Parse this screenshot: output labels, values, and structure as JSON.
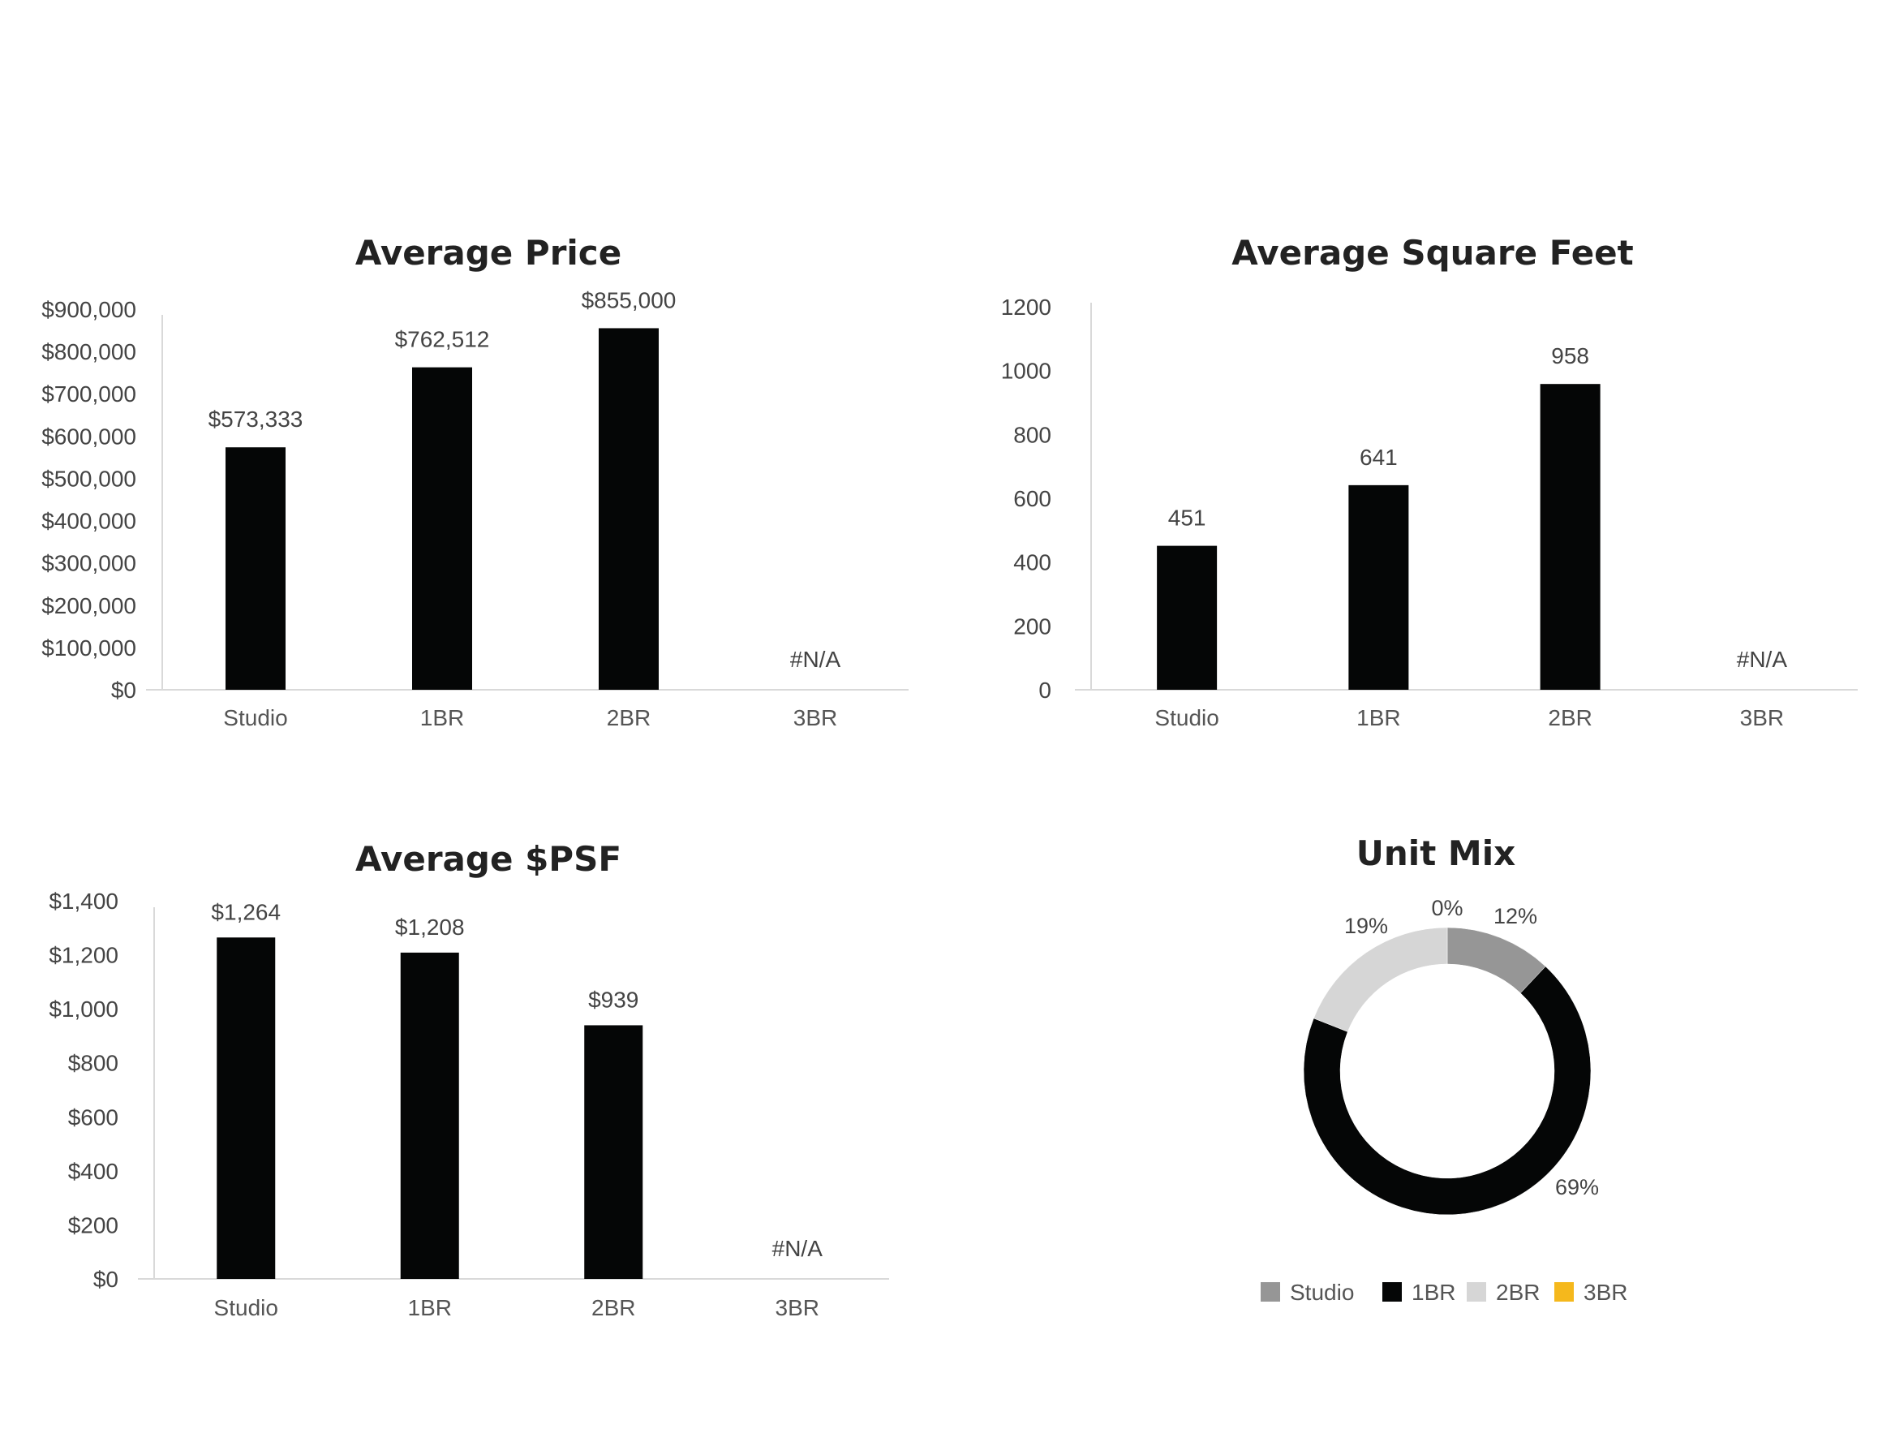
{
  "chart_data": [
    {
      "type": "bar",
      "title": "Average Price",
      "categories": [
        "Studio",
        "1BR",
        "2BR",
        "3BR"
      ],
      "values": [
        573333,
        762512,
        855000,
        null
      ],
      "data_labels": [
        "$573,333",
        "$762,512",
        "$855,000",
        "#N/A"
      ],
      "ylim": [
        0,
        900000
      ],
      "y_ticks": [
        "$0",
        "$100,000",
        "$200,000",
        "$300,000",
        "$400,000",
        "$500,000",
        "$600,000",
        "$700,000",
        "$800,000",
        "$900,000"
      ],
      "bar_color": "#050606",
      "grid": false
    },
    {
      "type": "bar",
      "title": "Average Square Feet",
      "categories": [
        "Studio",
        "1BR",
        "2BR",
        "3BR"
      ],
      "values": [
        451,
        641,
        958,
        null
      ],
      "data_labels": [
        "451",
        "641",
        "958",
        "#N/A"
      ],
      "ylim": [
        0,
        1200
      ],
      "y_ticks": [
        "0",
        "200",
        "400",
        "600",
        "800",
        "1000",
        "1200"
      ],
      "bar_color": "#050606",
      "grid": false
    },
    {
      "type": "bar",
      "title": "Average $PSF",
      "categories": [
        "Studio",
        "1BR",
        "2BR",
        "3BR"
      ],
      "values": [
        1264,
        1208,
        939,
        null
      ],
      "data_labels": [
        "$1,264",
        "$1,208",
        "$939",
        "#N/A"
      ],
      "ylim": [
        0,
        1400
      ],
      "y_ticks": [
        "$0",
        "$200",
        "$400",
        "$600",
        "$800",
        "$1,000",
        "$1,200",
        "$1,400"
      ],
      "bar_color": "#050606",
      "grid": false
    },
    {
      "type": "pie",
      "donut": true,
      "title": "Unit Mix",
      "labels": [
        "Studio",
        "1BR",
        "2BR",
        "3BR"
      ],
      "values": [
        12,
        69,
        19,
        0
      ],
      "data_labels": [
        "12%",
        "69%",
        "19%",
        "0%"
      ],
      "colors": [
        "#969696",
        "#050606",
        "#d6d6d6",
        "#f5b81c"
      ],
      "legend": "bottom"
    }
  ]
}
